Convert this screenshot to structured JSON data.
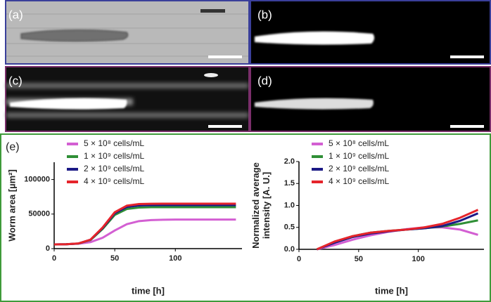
{
  "panels": [
    {
      "label": "(a)"
    },
    {
      "label": "(b)"
    },
    {
      "label": "(c)"
    },
    {
      "label": "(d)"
    },
    {
      "label": "(e)"
    }
  ],
  "chart_data": [
    {
      "type": "line",
      "ylabel": [
        "Worm area [µm²]"
      ],
      "xlabel": "time [h]",
      "x": [
        0,
        10,
        20,
        30,
        40,
        50,
        60,
        70,
        80,
        90,
        100,
        110,
        120,
        130,
        140,
        150
      ],
      "series": [
        {
          "name": "5 × 10⁸ cells/mL",
          "color": "#d35fd2",
          "values": [
            6100,
            6300,
            7100,
            9400,
            15700,
            26200,
            35400,
            39800,
            41300,
            41800,
            42000,
            42000,
            42000,
            42000,
            42000,
            42000
          ]
        },
        {
          "name": "1 × 10⁹ cells/mL",
          "color": "#2f8f36",
          "values": [
            6000,
            6300,
            7300,
            12400,
            28500,
            48700,
            57400,
            59500,
            59900,
            60000,
            60000,
            60000,
            60000,
            60000,
            60000,
            60000
          ]
        },
        {
          "name": "2 × 10⁹ cells/mL",
          "color": "#1c1a86",
          "values": [
            6100,
            6300,
            7400,
            12800,
            29800,
            51100,
            60300,
            62500,
            62900,
            63000,
            63000,
            63000,
            63000,
            63000,
            63000,
            63000
          ]
        },
        {
          "name": "4 × 10⁹ cells/mL",
          "color": "#e5242b",
          "values": [
            6100,
            6300,
            7500,
            13000,
            30600,
            52700,
            62200,
            64500,
            64900,
            65000,
            65000,
            65000,
            65000,
            65000,
            65000,
            65000
          ]
        }
      ],
      "xlim": [
        0,
        155
      ],
      "xticks": [
        0,
        50,
        100
      ],
      "ylim": [
        0,
        125000
      ],
      "yticks": [
        0,
        50000,
        100000
      ]
    },
    {
      "type": "line",
      "ylabel": [
        "Normalized average",
        "intensity [A. U.]"
      ],
      "xlabel": "time [h]",
      "x": [
        15,
        30,
        45,
        60,
        75,
        90,
        105,
        120,
        135,
        150
      ],
      "series": [
        {
          "name": "5 × 10⁸ cells/mL",
          "color": "#d35fd2",
          "values": [
            0,
            0.1,
            0.22,
            0.32,
            0.4,
            0.46,
            0.5,
            0.5,
            0.45,
            0.33
          ]
        },
        {
          "name": "1 × 10⁹ cells/mL",
          "color": "#2f8f36",
          "values": [
            0,
            0.17,
            0.3,
            0.38,
            0.42,
            0.45,
            0.48,
            0.52,
            0.58,
            0.66
          ]
        },
        {
          "name": "2 × 10⁹ cells/mL",
          "color": "#1c1a86",
          "values": [
            0,
            0.15,
            0.28,
            0.36,
            0.41,
            0.45,
            0.48,
            0.53,
            0.65,
            0.82
          ]
        },
        {
          "name": "4 × 10⁹ cells/mL",
          "color": "#e5242b",
          "values": [
            0,
            0.18,
            0.3,
            0.38,
            0.42,
            0.45,
            0.5,
            0.58,
            0.72,
            0.9
          ]
        }
      ],
      "xlim": [
        0,
        155
      ],
      "xticks": [
        0,
        50,
        100
      ],
      "ylim": [
        0,
        2.0
      ],
      "yticks": [
        {
          "value": 0,
          "label": "0.0"
        },
        {
          "value": 0.5,
          "label": "0.5"
        },
        {
          "value": 1,
          "label": "1.0"
        },
        {
          "value": 1.5,
          "label": "1.5"
        },
        {
          "value": 2,
          "label": "2.0"
        }
      ]
    }
  ]
}
